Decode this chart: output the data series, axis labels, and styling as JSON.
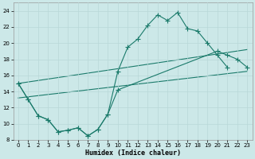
{
  "xlabel": "Humidex (Indice chaleur)",
  "bg_color": "#cce8e8",
  "grid_color": "#b8d8d8",
  "line_color": "#1a7a6a",
  "xlim": [
    -0.5,
    23.5
  ],
  "ylim": [
    8,
    25
  ],
  "yticks": [
    8,
    10,
    12,
    14,
    16,
    18,
    20,
    22,
    24
  ],
  "xticks": [
    0,
    1,
    2,
    3,
    4,
    5,
    6,
    7,
    8,
    9,
    10,
    11,
    12,
    13,
    14,
    15,
    16,
    17,
    18,
    19,
    20,
    21,
    22,
    23
  ],
  "curve1_x": [
    0,
    1,
    2,
    3,
    4,
    5,
    6,
    7,
    8,
    9,
    10,
    11,
    12,
    13,
    14,
    15,
    16,
    17,
    18,
    19,
    20,
    21
  ],
  "curve1_y": [
    15,
    13,
    11,
    10.5,
    9,
    9.2,
    9.5,
    8.5,
    9.3,
    11.2,
    16.5,
    19.5,
    20.5,
    22.2,
    23.5,
    22.8,
    23.8,
    21.8,
    21.5,
    20,
    18.5,
    17
  ],
  "curve2_x": [
    0,
    1,
    2,
    3,
    4,
    5,
    6,
    7,
    8,
    9,
    10,
    20,
    21,
    22,
    23
  ],
  "curve2_y": [
    15,
    13,
    11,
    10.5,
    9,
    9.2,
    9.5,
    8.5,
    9.3,
    11.2,
    14.2,
    19.0,
    18.5,
    18.0,
    17
  ],
  "line1_x": [
    0,
    23
  ],
  "line1_y": [
    13.2,
    16.5
  ],
  "line2_x": [
    0,
    23
  ],
  "line2_y": [
    15.0,
    19.2
  ]
}
